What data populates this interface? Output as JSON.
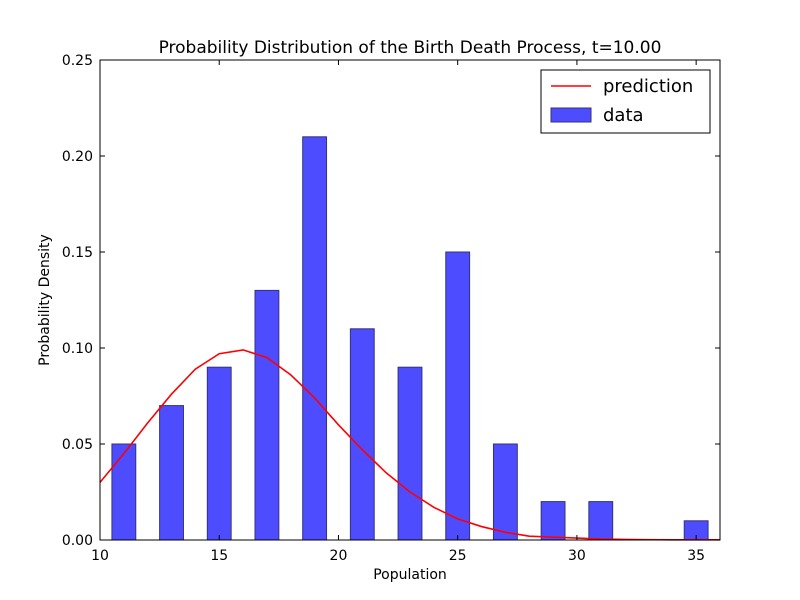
{
  "chart_data": {
    "type": "bar",
    "title": "Probability Distribution of the Birth Death Process, t=10.00",
    "xlabel": "Population",
    "ylabel": "Probability Density",
    "xlim": [
      10,
      36
    ],
    "ylim": [
      0,
      0.25
    ],
    "xticks": [
      10,
      15,
      20,
      25,
      30,
      35
    ],
    "yticks": [
      0,
      0.05,
      0.1,
      0.15,
      0.2,
      0.25
    ],
    "xtick_labels": [
      "10",
      "15",
      "20",
      "25",
      "30",
      "35"
    ],
    "ytick_labels": [
      "0.00",
      "0.05",
      "0.10",
      "0.15",
      "0.20",
      "0.25"
    ],
    "grid": false,
    "legend_position": "top-right",
    "series": [
      {
        "name": "data",
        "kind": "bar",
        "color": "#4d4dff",
        "bar_width": 1,
        "x": [
          11,
          13,
          15,
          17,
          19,
          21,
          23,
          25,
          27,
          29,
          31,
          35
        ],
        "values": [
          0.05,
          0.07,
          0.09,
          0.13,
          0.21,
          0.11,
          0.09,
          0.15,
          0.05,
          0.02,
          0.02,
          0.01
        ]
      },
      {
        "name": "prediction",
        "kind": "line",
        "color": "#ff0000",
        "x": [
          10,
          11,
          12,
          13,
          14,
          15,
          16,
          17,
          18,
          19,
          20,
          21,
          22,
          23,
          24,
          25,
          26,
          27,
          28,
          29,
          30,
          31,
          32,
          33,
          34,
          35,
          36
        ],
        "values": [
          0.03,
          0.045,
          0.061,
          0.076,
          0.089,
          0.097,
          0.099,
          0.095,
          0.086,
          0.074,
          0.06,
          0.047,
          0.035,
          0.025,
          0.017,
          0.011,
          0.007,
          0.004,
          0.002,
          0.0015,
          0.001,
          0.0005,
          0.0003,
          0.0002,
          0.0001,
          0.0001,
          0.0001
        ]
      }
    ],
    "legend": [
      {
        "name": "prediction",
        "kind": "line",
        "color": "#ff0000"
      },
      {
        "name": "data",
        "kind": "bar",
        "color": "#4d4dff"
      }
    ]
  }
}
